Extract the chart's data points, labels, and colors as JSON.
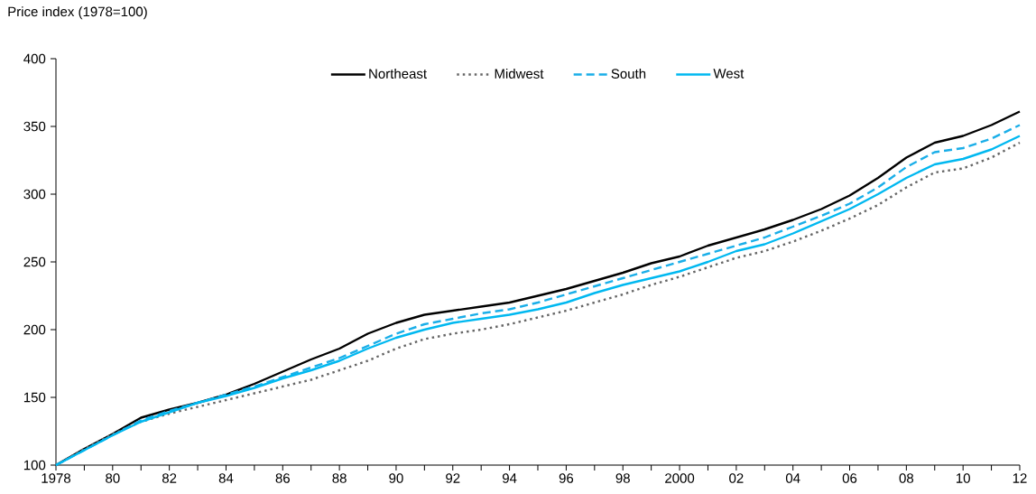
{
  "chart_data": {
    "type": "line",
    "ylabel": "Price index (1978=100)",
    "x": [
      1978,
      1979,
      1980,
      1981,
      1982,
      1983,
      1984,
      1985,
      1986,
      1987,
      1988,
      1989,
      1990,
      1991,
      1992,
      1993,
      1994,
      1995,
      1996,
      1997,
      1998,
      1999,
      2000,
      2001,
      2002,
      2003,
      2004,
      2005,
      2006,
      2007,
      2008,
      2009,
      2010,
      2011,
      2012
    ],
    "series": [
      {
        "name": "Northeast",
        "color": "#000000",
        "line_style": "solid",
        "values": [
          100,
          112,
          123,
          135,
          141,
          146,
          152,
          160,
          169,
          178,
          186,
          197,
          205,
          211,
          214,
          217,
          220,
          225,
          230,
          236,
          242,
          249,
          254,
          262,
          268,
          274,
          281,
          289,
          299,
          312,
          327,
          338,
          343,
          351,
          361
        ]
      },
      {
        "name": "Midwest",
        "color": "#666666",
        "line_style": "dotted",
        "values": [
          100,
          112,
          123,
          132,
          138,
          143,
          148,
          153,
          158,
          163,
          170,
          177,
          186,
          193,
          197,
          200,
          204,
          209,
          214,
          220,
          226,
          233,
          239,
          246,
          253,
          258,
          265,
          273,
          282,
          292,
          305,
          316,
          319,
          327,
          338
        ]
      },
      {
        "name": "South",
        "color": "#1aaee8",
        "line_style": "dashed",
        "values": [
          100,
          111,
          122,
          133,
          140,
          146,
          152,
          158,
          165,
          172,
          179,
          188,
          197,
          204,
          208,
          212,
          215,
          220,
          226,
          232,
          238,
          244,
          250,
          256,
          262,
          268,
          276,
          284,
          293,
          305,
          320,
          331,
          334,
          341,
          351
        ]
      },
      {
        "name": "West",
        "color": "#00b8f0",
        "line_style": "solid",
        "values": [
          100,
          111,
          122,
          132,
          139,
          146,
          151,
          157,
          164,
          170,
          177,
          186,
          194,
          200,
          205,
          208,
          211,
          215,
          220,
          227,
          233,
          238,
          243,
          250,
          258,
          263,
          271,
          280,
          289,
          300,
          312,
          322,
          326,
          333,
          343
        ]
      }
    ],
    "xlim": [
      1978,
      2012
    ],
    "xticks": [
      1978,
      {
        "value": 1979,
        "label": null
      },
      {
        "value": 1980,
        "label": "80"
      },
      {
        "value": 1981,
        "label": null
      },
      {
        "value": 1982,
        "label": "82"
      },
      {
        "value": 1983,
        "label": null
      },
      {
        "value": 1984,
        "label": "84"
      },
      {
        "value": 1985,
        "label": null
      },
      {
        "value": 1986,
        "label": "86"
      },
      {
        "value": 1987,
        "label": null
      },
      {
        "value": 1988,
        "label": "88"
      },
      {
        "value": 1989,
        "label": null
      },
      {
        "value": 1990,
        "label": "90"
      },
      {
        "value": 1991,
        "label": null
      },
      {
        "value": 1992,
        "label": "92"
      },
      {
        "value": 1993,
        "label": null
      },
      {
        "value": 1994,
        "label": "94"
      },
      {
        "value": 1995,
        "label": null
      },
      {
        "value": 1996,
        "label": "96"
      },
      {
        "value": 1997,
        "label": null
      },
      {
        "value": 1998,
        "label": "98"
      },
      {
        "value": 1999,
        "label": null
      },
      2000,
      {
        "value": 2001,
        "label": null
      },
      {
        "value": 2002,
        "label": "02"
      },
      {
        "value": 2003,
        "label": null
      },
      {
        "value": 2004,
        "label": "04"
      },
      {
        "value": 2005,
        "label": null
      },
      {
        "value": 2006,
        "label": "06"
      },
      {
        "value": 2007,
        "label": null
      },
      {
        "value": 2008,
        "label": "08"
      },
      {
        "value": 2009,
        "label": null
      },
      {
        "value": 2010,
        "label": "10"
      },
      {
        "value": 2011,
        "label": null
      },
      {
        "value": 2012,
        "label": "12"
      }
    ],
    "ylim": [
      100,
      400
    ],
    "yticks": [
      100,
      150,
      200,
      250,
      300,
      350,
      400
    ],
    "grid": false,
    "legend": "top"
  }
}
